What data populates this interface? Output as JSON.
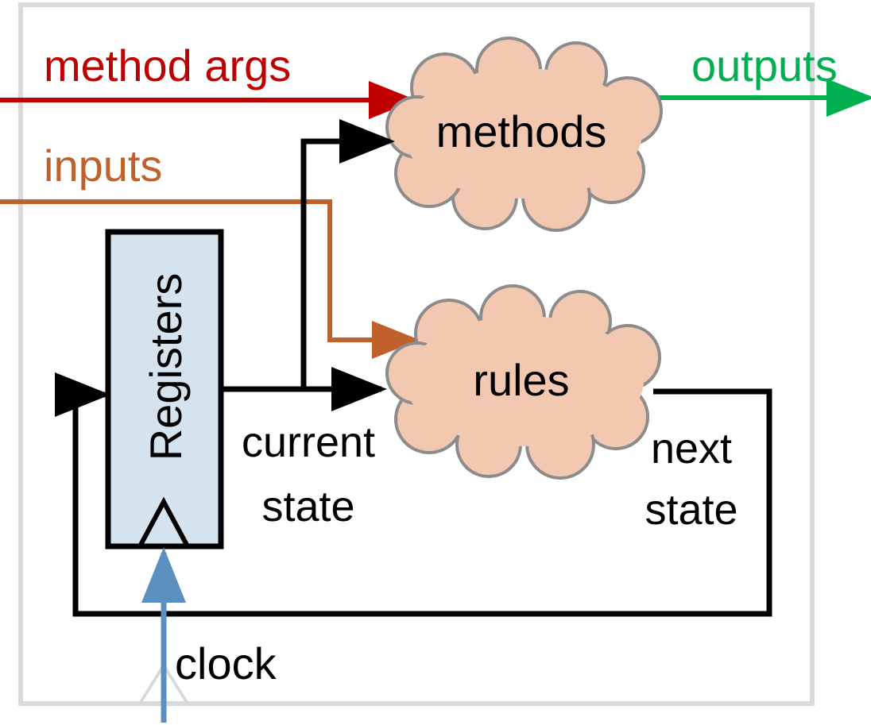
{
  "labels": {
    "method_args": "method args",
    "outputs": "outputs",
    "methods": "methods",
    "inputs": "inputs",
    "registers": "Registers",
    "rules": "rules",
    "current_state_line1": "current",
    "current_state_line2": "state",
    "next_state_line1": "next",
    "next_state_line2": "state",
    "clock": "clock"
  },
  "colors": {
    "method_args": "#c00000",
    "outputs": "#00b050",
    "inputs": "#c0602a",
    "clock": "#5b8fc0",
    "wires": "#000000",
    "cloud_fill": "#f2c8b0",
    "cloud_stroke": "#8c8c8c",
    "register_fill": "#d5e3ef",
    "frame": "#d9d9d9"
  }
}
